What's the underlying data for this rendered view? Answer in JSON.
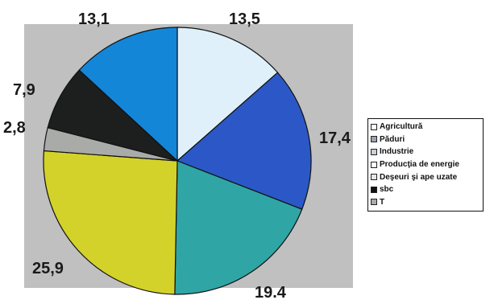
{
  "chart_data": {
    "type": "pie",
    "slices": [
      {
        "label": "Agricultură",
        "value": 13.5,
        "value_label": "13,5",
        "color": "#dff0fa"
      },
      {
        "label": "Păduri",
        "value": 17.4,
        "value_label": "17,4",
        "color": "#2b58c6"
      },
      {
        "label": "Industrie",
        "value": 19.4,
        "value_label": "19.4",
        "color": "#2fa5a6"
      },
      {
        "label": "Producţia de energie",
        "value": 25.9,
        "value_label": "25,9",
        "color": "#d3d22a"
      },
      {
        "label": "Deşeuri şi ape uzate",
        "value": 2.8,
        "value_label": "2,8",
        "color": "#a9aba9"
      },
      {
        "label": "sbc",
        "value": 7.9,
        "value_label": "7,9",
        "color": "#1d1f1f"
      },
      {
        "label": "T",
        "value": 13.1,
        "value_label": "13,1",
        "color": "#1486d8"
      }
    ],
    "legend": {
      "position": "right",
      "entries": [
        {
          "label": "Agricultură",
          "swatch_color": "#ffffff"
        },
        {
          "label": "Păduri",
          "swatch_color": "#9aa3b5"
        },
        {
          "label": "Industrie",
          "swatch_color": "#c9cfd6"
        },
        {
          "label": "Producţia de energie",
          "swatch_color": "#ffffff"
        },
        {
          "label": "Deşeuri şi ape uzate",
          "swatch_color": "#e6e6e6"
        },
        {
          "label": "sbc",
          "swatch_color": "#111111"
        },
        {
          "label": "T",
          "swatch_color": "#a9aba9"
        }
      ]
    },
    "background_color": "#c0c0c0"
  }
}
